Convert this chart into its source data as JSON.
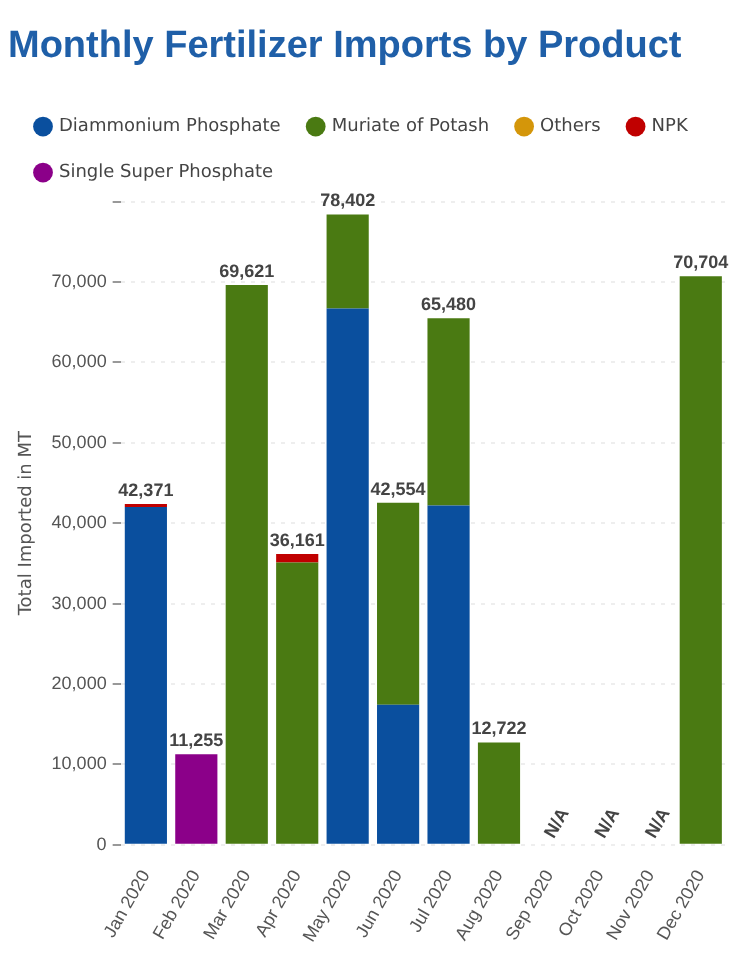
{
  "chart_data": {
    "type": "bar",
    "title": "Monthly Fertilizer Imports by Product",
    "ylabel": "Total Imported in MT",
    "categories": [
      "Jan 2020",
      "Feb 2020",
      "Mar 2020",
      "Apr 2020",
      "May 2020",
      "Jun 2020",
      "Jul 2020",
      "Aug 2020",
      "Sep 2020",
      "Oct 2020",
      "Nov 2020",
      "Dec 2020"
    ],
    "series": [
      {
        "name": "Diammonium Phosphate",
        "color": "#0a4f9e",
        "values": [
          42000,
          null,
          null,
          null,
          66700,
          17400,
          42200,
          null,
          null,
          null,
          null,
          null
        ]
      },
      {
        "name": "Muriate of Potash",
        "color": "#4a7a12",
        "values": [
          null,
          null,
          69621,
          35100,
          11702,
          25154,
          23280,
          12722,
          null,
          null,
          null,
          70704
        ]
      },
      {
        "name": "Others",
        "color": "#d4960a",
        "values": [
          null,
          null,
          null,
          null,
          null,
          null,
          null,
          null,
          null,
          null,
          null,
          null
        ]
      },
      {
        "name": "NPK",
        "color": "#c00000",
        "values": [
          371,
          null,
          null,
          1061,
          null,
          null,
          null,
          null,
          null,
          null,
          null,
          null
        ]
      },
      {
        "name": "Single Super Phosphate",
        "color": "#8b0089",
        "values": [
          null,
          11255,
          null,
          null,
          null,
          null,
          null,
          null,
          null,
          null,
          null,
          null
        ]
      }
    ],
    "stacked": true,
    "totals": [
      "42,371",
      "11,255",
      "69,621",
      "36,161",
      "78,402",
      "42,554",
      "65,480",
      "12,722",
      "N/A",
      "N/A",
      "N/A",
      "70,704"
    ],
    "ylim": [
      0,
      80000
    ],
    "yticks": [
      0,
      {
        "value": 10000,
        "label": "10,000"
      },
      {
        "value": 20000,
        "label": "20,000"
      },
      {
        "value": 30000,
        "label": "30,000"
      },
      {
        "value": 40000,
        "label": "40,000"
      },
      {
        "value": 50000,
        "label": "50,000"
      },
      {
        "value": 60000,
        "label": "60,000"
      },
      {
        "value": 70000,
        "label": "70,000"
      },
      {
        "value": 80000,
        "label": null
      }
    ],
    "grid": "y",
    "legend": "top left"
  }
}
